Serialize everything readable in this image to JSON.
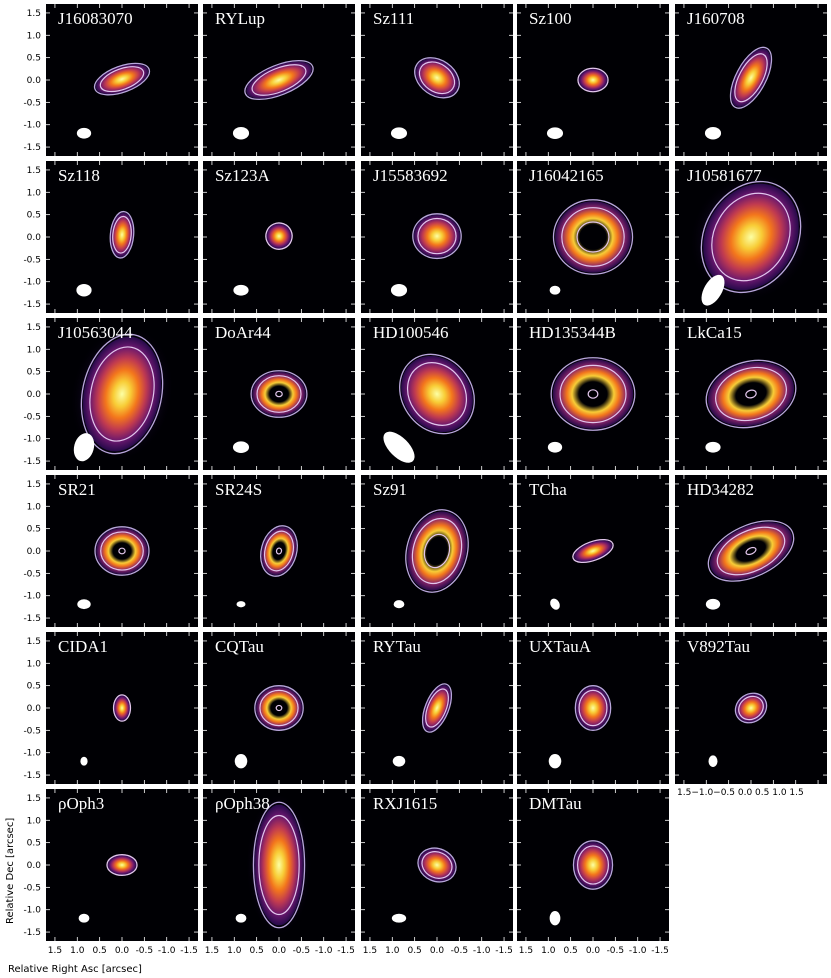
{
  "figure": {
    "xlabel": "Relative Right Asc [arcsec]",
    "ylabel": "Relative Dec [arcsec]",
    "y_ticks": [
      "1.5",
      "1.0",
      "0.5",
      "0.0",
      "-0.5",
      "-1.0",
      "-1.5"
    ],
    "x_ticks": [
      "1.5",
      "1.0",
      "0.5",
      "0.0",
      "-0.5",
      "-1.0",
      "-1.5"
    ],
    "x_ticks_compact": "1.5−1.0−0.5 0.0  0.5  1.0  1.5",
    "axis_range_arcsec": [
      -1.7,
      1.7
    ],
    "colormap": "inferno",
    "contour_colors": [
      "#b9a6dc",
      "#e2c6ec"
    ],
    "beam_color": "#ffffff"
  },
  "panels": [
    {
      "name": "J16083070"
    },
    {
      "name": "RYLup"
    },
    {
      "name": "Sz111"
    },
    {
      "name": "Sz100"
    },
    {
      "name": "J160708"
    },
    {
      "name": "Sz118"
    },
    {
      "name": "Sz123A"
    },
    {
      "name": "J15583692"
    },
    {
      "name": "J16042165"
    },
    {
      "name": "J10581677"
    },
    {
      "name": "J10563044"
    },
    {
      "name": "DoAr44"
    },
    {
      "name": "HD100546"
    },
    {
      "name": "HD135344B"
    },
    {
      "name": "LkCa15"
    },
    {
      "name": "SR21"
    },
    {
      "name": "SR24S"
    },
    {
      "name": "Sz91"
    },
    {
      "name": "TCha"
    },
    {
      "name": "HD34282"
    },
    {
      "name": "CIDA1"
    },
    {
      "name": "CQTau"
    },
    {
      "name": "RYTau"
    },
    {
      "name": "UXTauA"
    },
    {
      "name": "V892Tau"
    },
    {
      "name": "ρOph3"
    },
    {
      "name": "ρOph38"
    },
    {
      "name": "RXJ1615"
    },
    {
      "name": "DMTau"
    }
  ]
}
